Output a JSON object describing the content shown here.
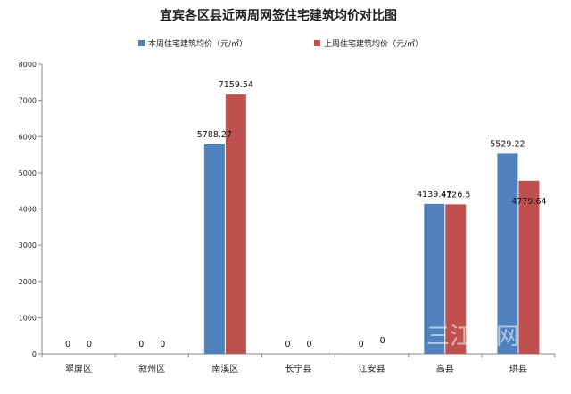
{
  "chart_data": {
    "type": "bar",
    "title": "宜宾各区县近两周网签住宅建筑均价对比图",
    "categories": [
      "翠屏区",
      "叙州区",
      "南溪区",
      "长宁县",
      "江安县",
      "高县",
      "珙县"
    ],
    "series": [
      {
        "name": "本周住宅建筑均价（元/㎡）",
        "color": "#4f81bd",
        "values": [
          0,
          0,
          5788.27,
          0,
          0,
          4139.47,
          5529.22
        ],
        "labels": [
          "0",
          "0",
          "5788.27",
          "0",
          "0",
          "4139.47",
          "5529.22"
        ]
      },
      {
        "name": "上周住宅建筑均价（元/㎡）",
        "color": "#c0504d",
        "values": [
          0,
          0,
          7159.54,
          0,
          0,
          4126.5,
          4779.64
        ],
        "labels": [
          "0",
          "0",
          "7159.54",
          "0",
          "0",
          "4126.5",
          "4779.64"
        ]
      }
    ],
    "ylim": [
      0,
      8000
    ],
    "yticks": [
      "0",
      "1000",
      "2000",
      "3000",
      "4000",
      "5000",
      "6000",
      "7000",
      "8000"
    ],
    "grid": false,
    "legend_position": "top"
  },
  "watermark": "三江房网"
}
